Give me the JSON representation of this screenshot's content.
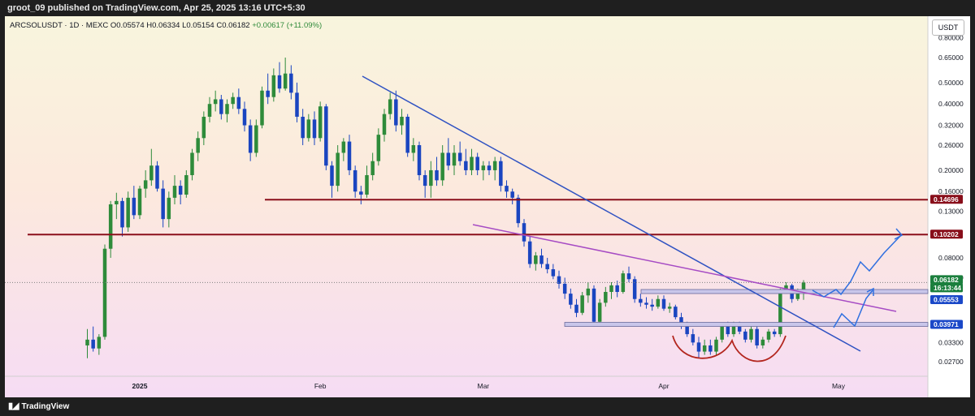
{
  "header": {
    "publisher_line": "groot_09 published on TradingView.com, Apr 25, 2025 13:16 UTC+5:30"
  },
  "legend": {
    "symbol": "ARCSOLUSDT · 1D · MEXC",
    "open": "O0.05574",
    "high": "H0.06334",
    "low": "L0.05154",
    "close": "C0.06182",
    "change": "+0.00617 (+11.09%)"
  },
  "price_axis": {
    "unit": "USDT",
    "ticks": [
      "0.80000",
      "0.65000",
      "0.50000",
      "0.40000",
      "0.32000",
      "0.26000",
      "0.20000",
      "0.16000",
      "0.13000",
      "0.08000",
      "0.06500",
      "0.03300",
      "0.02700"
    ]
  },
  "price_tags": [
    {
      "label": "0.14696",
      "bg": "#880e1a",
      "fg": "#ffffff"
    },
    {
      "label": "0.10202",
      "bg": "#880e1a",
      "fg": "#ffffff"
    },
    {
      "label": "0.06182",
      "bg": "#1b7f3d",
      "fg": "#ffffff"
    },
    {
      "label": "16:13:44",
      "bg": "#1b7f3d",
      "fg": "#ffffff"
    },
    {
      "label": "0.05553",
      "bg": "#1a48c8",
      "fg": "#ffffff"
    },
    {
      "label": "0.03971",
      "bg": "#1a48c8",
      "fg": "#ffffff"
    }
  ],
  "time_axis": {
    "ticks": [
      "2025",
      "Feb",
      "Mar",
      "Apr",
      "May"
    ]
  },
  "footer": {
    "brand": "TradingView"
  },
  "chart_data": {
    "type": "candlestick",
    "symbol": "ARCSOLUSDT",
    "interval": "1D",
    "exchange": "MEXC",
    "y_scale": "log",
    "ylim": [
      0.025,
      0.85
    ],
    "ohlc": {
      "open": 0.05574,
      "high": 0.06334,
      "low": 0.05154,
      "close": 0.06182
    },
    "horizontal_levels": [
      0.14696,
      0.10202,
      0.05553,
      0.03971
    ],
    "colors": {
      "up": "#2e8b3a",
      "down": "#1a45c0",
      "resistance": "#8b0f1b",
      "downtrend": "#2f52c2",
      "pink_trend": "#a64bc4",
      "projection": "#2f6fe0",
      "rounding_bottom": "#b3261e"
    },
    "candles": [
      {
        "date": "2024-12-23",
        "o": 0.032,
        "h": 0.038,
        "l": 0.028,
        "c": 0.034
      },
      {
        "date": "2024-12-24",
        "o": 0.034,
        "h": 0.039,
        "l": 0.03,
        "c": 0.031
      },
      {
        "date": "2024-12-25",
        "o": 0.031,
        "h": 0.036,
        "l": 0.029,
        "c": 0.035
      },
      {
        "date": "2024-12-26",
        "o": 0.035,
        "h": 0.092,
        "l": 0.034,
        "c": 0.088
      },
      {
        "date": "2024-12-27",
        "o": 0.088,
        "h": 0.145,
        "l": 0.08,
        "c": 0.14
      },
      {
        "date": "2024-12-28",
        "o": 0.14,
        "h": 0.158,
        "l": 0.12,
        "c": 0.145
      },
      {
        "date": "2024-12-29",
        "o": 0.145,
        "h": 0.15,
        "l": 0.1,
        "c": 0.11
      },
      {
        "date": "2024-12-30",
        "o": 0.11,
        "h": 0.16,
        "l": 0.105,
        "c": 0.15
      },
      {
        "date": "2024-12-31",
        "o": 0.15,
        "h": 0.17,
        "l": 0.12,
        "c": 0.125
      },
      {
        "date": "2025-01-01",
        "o": 0.125,
        "h": 0.17,
        "l": 0.12,
        "c": 0.165
      },
      {
        "date": "2025-01-02",
        "o": 0.165,
        "h": 0.2,
        "l": 0.15,
        "c": 0.18
      },
      {
        "date": "2025-01-03",
        "o": 0.18,
        "h": 0.25,
        "l": 0.17,
        "c": 0.21
      },
      {
        "date": "2025-01-04",
        "o": 0.21,
        "h": 0.22,
        "l": 0.16,
        "c": 0.165
      },
      {
        "date": "2025-01-05",
        "o": 0.165,
        "h": 0.18,
        "l": 0.11,
        "c": 0.12
      },
      {
        "date": "2025-01-06",
        "o": 0.12,
        "h": 0.16,
        "l": 0.11,
        "c": 0.15
      },
      {
        "date": "2025-01-07",
        "o": 0.15,
        "h": 0.19,
        "l": 0.14,
        "c": 0.17
      },
      {
        "date": "2025-01-08",
        "o": 0.17,
        "h": 0.18,
        "l": 0.14,
        "c": 0.155
      },
      {
        "date": "2025-01-09",
        "o": 0.155,
        "h": 0.2,
        "l": 0.15,
        "c": 0.19
      },
      {
        "date": "2025-01-10",
        "o": 0.19,
        "h": 0.25,
        "l": 0.18,
        "c": 0.24
      },
      {
        "date": "2025-01-11",
        "o": 0.24,
        "h": 0.3,
        "l": 0.22,
        "c": 0.28
      },
      {
        "date": "2025-01-12",
        "o": 0.28,
        "h": 0.37,
        "l": 0.26,
        "c": 0.35
      },
      {
        "date": "2025-01-13",
        "o": 0.35,
        "h": 0.43,
        "l": 0.33,
        "c": 0.4
      },
      {
        "date": "2025-01-14",
        "o": 0.4,
        "h": 0.46,
        "l": 0.37,
        "c": 0.42
      },
      {
        "date": "2025-01-15",
        "o": 0.42,
        "h": 0.44,
        "l": 0.34,
        "c": 0.36
      },
      {
        "date": "2025-01-16",
        "o": 0.36,
        "h": 0.42,
        "l": 0.33,
        "c": 0.4
      },
      {
        "date": "2025-01-17",
        "o": 0.4,
        "h": 0.45,
        "l": 0.38,
        "c": 0.43
      },
      {
        "date": "2025-01-18",
        "o": 0.43,
        "h": 0.47,
        "l": 0.36,
        "c": 0.38
      },
      {
        "date": "2025-01-19",
        "o": 0.38,
        "h": 0.41,
        "l": 0.3,
        "c": 0.32
      },
      {
        "date": "2025-01-20",
        "o": 0.32,
        "h": 0.34,
        "l": 0.22,
        "c": 0.24
      },
      {
        "date": "2025-01-21",
        "o": 0.24,
        "h": 0.34,
        "l": 0.23,
        "c": 0.32
      },
      {
        "date": "2025-01-22",
        "o": 0.32,
        "h": 0.48,
        "l": 0.31,
        "c": 0.46
      },
      {
        "date": "2025-01-23",
        "o": 0.46,
        "h": 0.55,
        "l": 0.4,
        "c": 0.43
      },
      {
        "date": "2025-01-24",
        "o": 0.43,
        "h": 0.58,
        "l": 0.41,
        "c": 0.54
      },
      {
        "date": "2025-01-25",
        "o": 0.54,
        "h": 0.62,
        "l": 0.45,
        "c": 0.47
      },
      {
        "date": "2025-01-26",
        "o": 0.47,
        "h": 0.65,
        "l": 0.46,
        "c": 0.55
      },
      {
        "date": "2025-01-27",
        "o": 0.55,
        "h": 0.6,
        "l": 0.42,
        "c": 0.45
      },
      {
        "date": "2025-01-28",
        "o": 0.45,
        "h": 0.5,
        "l": 0.33,
        "c": 0.35
      },
      {
        "date": "2025-01-29",
        "o": 0.35,
        "h": 0.38,
        "l": 0.26,
        "c": 0.28
      },
      {
        "date": "2025-01-30",
        "o": 0.28,
        "h": 0.36,
        "l": 0.27,
        "c": 0.34
      },
      {
        "date": "2025-01-31",
        "o": 0.34,
        "h": 0.37,
        "l": 0.26,
        "c": 0.28
      },
      {
        "date": "2025-02-01",
        "o": 0.28,
        "h": 0.41,
        "l": 0.27,
        "c": 0.39
      },
      {
        "date": "2025-02-02",
        "o": 0.39,
        "h": 0.4,
        "l": 0.2,
        "c": 0.21
      },
      {
        "date": "2025-02-03",
        "o": 0.21,
        "h": 0.22,
        "l": 0.15,
        "c": 0.17
      },
      {
        "date": "2025-02-04",
        "o": 0.17,
        "h": 0.26,
        "l": 0.16,
        "c": 0.24
      },
      {
        "date": "2025-02-05",
        "o": 0.24,
        "h": 0.28,
        "l": 0.22,
        "c": 0.27
      },
      {
        "date": "2025-02-06",
        "o": 0.27,
        "h": 0.29,
        "l": 0.19,
        "c": 0.2
      },
      {
        "date": "2025-02-07",
        "o": 0.2,
        "h": 0.21,
        "l": 0.15,
        "c": 0.16
      },
      {
        "date": "2025-02-08",
        "o": 0.16,
        "h": 0.17,
        "l": 0.14,
        "c": 0.155
      },
      {
        "date": "2025-02-09",
        "o": 0.155,
        "h": 0.21,
        "l": 0.15,
        "c": 0.19
      },
      {
        "date": "2025-02-10",
        "o": 0.19,
        "h": 0.24,
        "l": 0.18,
        "c": 0.22
      },
      {
        "date": "2025-02-11",
        "o": 0.22,
        "h": 0.31,
        "l": 0.21,
        "c": 0.29
      },
      {
        "date": "2025-02-12",
        "o": 0.29,
        "h": 0.38,
        "l": 0.27,
        "c": 0.36
      },
      {
        "date": "2025-02-13",
        "o": 0.36,
        "h": 0.45,
        "l": 0.34,
        "c": 0.42
      },
      {
        "date": "2025-02-14",
        "o": 0.42,
        "h": 0.46,
        "l": 0.3,
        "c": 0.32
      },
      {
        "date": "2025-02-15",
        "o": 0.32,
        "h": 0.38,
        "l": 0.29,
        "c": 0.35
      },
      {
        "date": "2025-02-16",
        "o": 0.35,
        "h": 0.36,
        "l": 0.23,
        "c": 0.24
      },
      {
        "date": "2025-02-17",
        "o": 0.24,
        "h": 0.28,
        "l": 0.22,
        "c": 0.26
      },
      {
        "date": "2025-02-18",
        "o": 0.26,
        "h": 0.27,
        "l": 0.18,
        "c": 0.19
      },
      {
        "date": "2025-02-19",
        "o": 0.19,
        "h": 0.2,
        "l": 0.15,
        "c": 0.17
      },
      {
        "date": "2025-02-20",
        "o": 0.17,
        "h": 0.22,
        "l": 0.15,
        "c": 0.2
      },
      {
        "date": "2025-02-21",
        "o": 0.2,
        "h": 0.23,
        "l": 0.17,
        "c": 0.18
      },
      {
        "date": "2025-02-22",
        "o": 0.18,
        "h": 0.26,
        "l": 0.17,
        "c": 0.24
      },
      {
        "date": "2025-02-23",
        "o": 0.24,
        "h": 0.28,
        "l": 0.2,
        "c": 0.21
      },
      {
        "date": "2025-02-24",
        "o": 0.21,
        "h": 0.26,
        "l": 0.19,
        "c": 0.24
      },
      {
        "date": "2025-02-25",
        "o": 0.24,
        "h": 0.27,
        "l": 0.21,
        "c": 0.22
      },
      {
        "date": "2025-02-26",
        "o": 0.22,
        "h": 0.25,
        "l": 0.19,
        "c": 0.2
      },
      {
        "date": "2025-02-27",
        "o": 0.2,
        "h": 0.25,
        "l": 0.19,
        "c": 0.23
      },
      {
        "date": "2025-02-28",
        "o": 0.23,
        "h": 0.24,
        "l": 0.19,
        "c": 0.2
      },
      {
        "date": "2025-03-01",
        "o": 0.2,
        "h": 0.22,
        "l": 0.18,
        "c": 0.21
      },
      {
        "date": "2025-03-02",
        "o": 0.21,
        "h": 0.22,
        "l": 0.19,
        "c": 0.2
      },
      {
        "date": "2025-03-03",
        "o": 0.2,
        "h": 0.23,
        "l": 0.18,
        "c": 0.22
      },
      {
        "date": "2025-03-04",
        "o": 0.22,
        "h": 0.23,
        "l": 0.16,
        "c": 0.17
      },
      {
        "date": "2025-03-05",
        "o": 0.17,
        "h": 0.18,
        "l": 0.15,
        "c": 0.16
      },
      {
        "date": "2025-03-06",
        "o": 0.16,
        "h": 0.165,
        "l": 0.14,
        "c": 0.15
      },
      {
        "date": "2025-03-07",
        "o": 0.15,
        "h": 0.155,
        "l": 0.11,
        "c": 0.115
      },
      {
        "date": "2025-03-08",
        "o": 0.115,
        "h": 0.12,
        "l": 0.09,
        "c": 0.095
      },
      {
        "date": "2025-03-09",
        "o": 0.095,
        "h": 0.1,
        "l": 0.072,
        "c": 0.075
      },
      {
        "date": "2025-03-10",
        "o": 0.075,
        "h": 0.085,
        "l": 0.07,
        "c": 0.082
      },
      {
        "date": "2025-03-11",
        "o": 0.082,
        "h": 0.088,
        "l": 0.072,
        "c": 0.075
      },
      {
        "date": "2025-03-12",
        "o": 0.075,
        "h": 0.08,
        "l": 0.068,
        "c": 0.071
      },
      {
        "date": "2025-03-13",
        "o": 0.071,
        "h": 0.075,
        "l": 0.064,
        "c": 0.066
      },
      {
        "date": "2025-03-14",
        "o": 0.066,
        "h": 0.07,
        "l": 0.058,
        "c": 0.061
      },
      {
        "date": "2025-03-15",
        "o": 0.061,
        "h": 0.065,
        "l": 0.052,
        "c": 0.055
      },
      {
        "date": "2025-03-16",
        "o": 0.055,
        "h": 0.058,
        "l": 0.047,
        "c": 0.049
      },
      {
        "date": "2025-03-17",
        "o": 0.049,
        "h": 0.052,
        "l": 0.043,
        "c": 0.045
      },
      {
        "date": "2025-03-18",
        "o": 0.045,
        "h": 0.056,
        "l": 0.044,
        "c": 0.054
      },
      {
        "date": "2025-03-19",
        "o": 0.054,
        "h": 0.062,
        "l": 0.05,
        "c": 0.058
      },
      {
        "date": "2025-03-20",
        "o": 0.058,
        "h": 0.06,
        "l": 0.039,
        "c": 0.041
      },
      {
        "date": "2025-03-21",
        "o": 0.041,
        "h": 0.052,
        "l": 0.04,
        "c": 0.05
      },
      {
        "date": "2025-03-22",
        "o": 0.05,
        "h": 0.059,
        "l": 0.048,
        "c": 0.056
      },
      {
        "date": "2025-03-23",
        "o": 0.056,
        "h": 0.062,
        "l": 0.052,
        "c": 0.06
      },
      {
        "date": "2025-03-24",
        "o": 0.06,
        "h": 0.063,
        "l": 0.053,
        "c": 0.056
      },
      {
        "date": "2025-03-25",
        "o": 0.056,
        "h": 0.07,
        "l": 0.055,
        "c": 0.068
      },
      {
        "date": "2025-03-26",
        "o": 0.068,
        "h": 0.073,
        "l": 0.062,
        "c": 0.064
      },
      {
        "date": "2025-03-27",
        "o": 0.064,
        "h": 0.066,
        "l": 0.05,
        "c": 0.052
      },
      {
        "date": "2025-03-28",
        "o": 0.052,
        "h": 0.055,
        "l": 0.048,
        "c": 0.05
      },
      {
        "date": "2025-03-29",
        "o": 0.05,
        "h": 0.053,
        "l": 0.047,
        "c": 0.049
      },
      {
        "date": "2025-03-30",
        "o": 0.049,
        "h": 0.052,
        "l": 0.046,
        "c": 0.048
      },
      {
        "date": "2025-03-31",
        "o": 0.048,
        "h": 0.054,
        "l": 0.047,
        "c": 0.052
      },
      {
        "date": "2025-04-01",
        "o": 0.052,
        "h": 0.054,
        "l": 0.046,
        "c": 0.047
      },
      {
        "date": "2025-04-02",
        "o": 0.047,
        "h": 0.05,
        "l": 0.045,
        "c": 0.048
      },
      {
        "date": "2025-04-03",
        "o": 0.048,
        "h": 0.049,
        "l": 0.042,
        "c": 0.043
      },
      {
        "date": "2025-04-04",
        "o": 0.043,
        "h": 0.045,
        "l": 0.038,
        "c": 0.039
      },
      {
        "date": "2025-04-05",
        "o": 0.039,
        "h": 0.041,
        "l": 0.035,
        "c": 0.036
      },
      {
        "date": "2025-04-06",
        "o": 0.036,
        "h": 0.038,
        "l": 0.032,
        "c": 0.033
      },
      {
        "date": "2025-04-07",
        "o": 0.033,
        "h": 0.035,
        "l": 0.028,
        "c": 0.03
      },
      {
        "date": "2025-04-08",
        "o": 0.03,
        "h": 0.034,
        "l": 0.029,
        "c": 0.032
      },
      {
        "date": "2025-04-09",
        "o": 0.032,
        "h": 0.034,
        "l": 0.029,
        "c": 0.03
      },
      {
        "date": "2025-04-10",
        "o": 0.03,
        "h": 0.035,
        "l": 0.029,
        "c": 0.034
      },
      {
        "date": "2025-04-11",
        "o": 0.034,
        "h": 0.04,
        "l": 0.033,
        "c": 0.039
      },
      {
        "date": "2025-04-12",
        "o": 0.039,
        "h": 0.041,
        "l": 0.035,
        "c": 0.036
      },
      {
        "date": "2025-04-13",
        "o": 0.036,
        "h": 0.041,
        "l": 0.035,
        "c": 0.04
      },
      {
        "date": "2025-04-14",
        "o": 0.04,
        "h": 0.041,
        "l": 0.036,
        "c": 0.037
      },
      {
        "date": "2025-04-15",
        "o": 0.037,
        "h": 0.038,
        "l": 0.033,
        "c": 0.034
      },
      {
        "date": "2025-04-16",
        "o": 0.034,
        "h": 0.039,
        "l": 0.033,
        "c": 0.038
      },
      {
        "date": "2025-04-17",
        "o": 0.038,
        "h": 0.039,
        "l": 0.031,
        "c": 0.032
      },
      {
        "date": "2025-04-18",
        "o": 0.032,
        "h": 0.035,
        "l": 0.031,
        "c": 0.034
      },
      {
        "date": "2025-04-19",
        "o": 0.034,
        "h": 0.038,
        "l": 0.033,
        "c": 0.037
      },
      {
        "date": "2025-04-20",
        "o": 0.037,
        "h": 0.038,
        "l": 0.035,
        "c": 0.036
      },
      {
        "date": "2025-04-21",
        "o": 0.036,
        "h": 0.058,
        "l": 0.035,
        "c": 0.056
      },
      {
        "date": "2025-04-22",
        "o": 0.056,
        "h": 0.062,
        "l": 0.055,
        "c": 0.06
      },
      {
        "date": "2025-04-23",
        "o": 0.06,
        "h": 0.061,
        "l": 0.05,
        "c": 0.052
      },
      {
        "date": "2025-04-24",
        "o": 0.052,
        "h": 0.058,
        "l": 0.051,
        "c": 0.05574
      },
      {
        "date": "2025-04-25",
        "o": 0.05574,
        "h": 0.06334,
        "l": 0.05154,
        "c": 0.06182
      }
    ]
  }
}
